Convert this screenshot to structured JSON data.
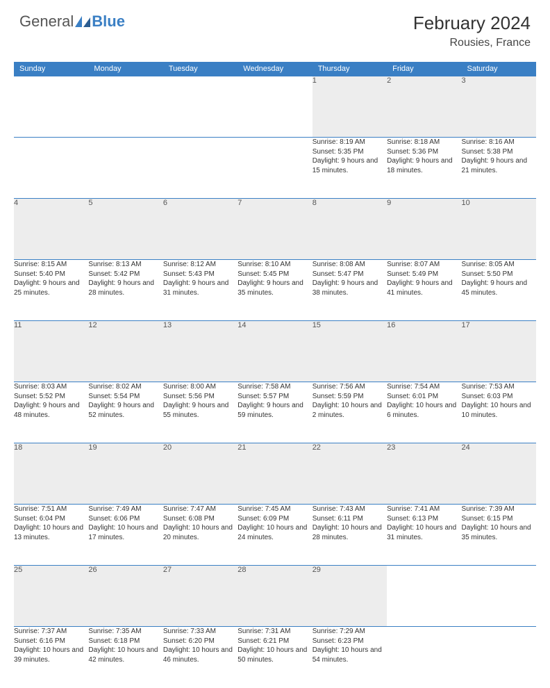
{
  "brand": {
    "text1": "General",
    "text2": "Blue"
  },
  "title": "February 2024",
  "location": "Rousies, France",
  "colors": {
    "header_bg": "#3a7fc4",
    "header_text": "#ffffff",
    "daynum_bg": "#ededed",
    "border": "#3a7fc4",
    "body_bg": "#ffffff",
    "text": "#333333"
  },
  "weekdays": [
    "Sunday",
    "Monday",
    "Tuesday",
    "Wednesday",
    "Thursday",
    "Friday",
    "Saturday"
  ],
  "weeks": [
    [
      null,
      null,
      null,
      null,
      {
        "n": "1",
        "sunrise": "8:19 AM",
        "sunset": "5:35 PM",
        "daylight": "9 hours and 15 minutes."
      },
      {
        "n": "2",
        "sunrise": "8:18 AM",
        "sunset": "5:36 PM",
        "daylight": "9 hours and 18 minutes."
      },
      {
        "n": "3",
        "sunrise": "8:16 AM",
        "sunset": "5:38 PM",
        "daylight": "9 hours and 21 minutes."
      }
    ],
    [
      {
        "n": "4",
        "sunrise": "8:15 AM",
        "sunset": "5:40 PM",
        "daylight": "9 hours and 25 minutes."
      },
      {
        "n": "5",
        "sunrise": "8:13 AM",
        "sunset": "5:42 PM",
        "daylight": "9 hours and 28 minutes."
      },
      {
        "n": "6",
        "sunrise": "8:12 AM",
        "sunset": "5:43 PM",
        "daylight": "9 hours and 31 minutes."
      },
      {
        "n": "7",
        "sunrise": "8:10 AM",
        "sunset": "5:45 PM",
        "daylight": "9 hours and 35 minutes."
      },
      {
        "n": "8",
        "sunrise": "8:08 AM",
        "sunset": "5:47 PM",
        "daylight": "9 hours and 38 minutes."
      },
      {
        "n": "9",
        "sunrise": "8:07 AM",
        "sunset": "5:49 PM",
        "daylight": "9 hours and 41 minutes."
      },
      {
        "n": "10",
        "sunrise": "8:05 AM",
        "sunset": "5:50 PM",
        "daylight": "9 hours and 45 minutes."
      }
    ],
    [
      {
        "n": "11",
        "sunrise": "8:03 AM",
        "sunset": "5:52 PM",
        "daylight": "9 hours and 48 minutes."
      },
      {
        "n": "12",
        "sunrise": "8:02 AM",
        "sunset": "5:54 PM",
        "daylight": "9 hours and 52 minutes."
      },
      {
        "n": "13",
        "sunrise": "8:00 AM",
        "sunset": "5:56 PM",
        "daylight": "9 hours and 55 minutes."
      },
      {
        "n": "14",
        "sunrise": "7:58 AM",
        "sunset": "5:57 PM",
        "daylight": "9 hours and 59 minutes."
      },
      {
        "n": "15",
        "sunrise": "7:56 AM",
        "sunset": "5:59 PM",
        "daylight": "10 hours and 2 minutes."
      },
      {
        "n": "16",
        "sunrise": "7:54 AM",
        "sunset": "6:01 PM",
        "daylight": "10 hours and 6 minutes."
      },
      {
        "n": "17",
        "sunrise": "7:53 AM",
        "sunset": "6:03 PM",
        "daylight": "10 hours and 10 minutes."
      }
    ],
    [
      {
        "n": "18",
        "sunrise": "7:51 AM",
        "sunset": "6:04 PM",
        "daylight": "10 hours and 13 minutes."
      },
      {
        "n": "19",
        "sunrise": "7:49 AM",
        "sunset": "6:06 PM",
        "daylight": "10 hours and 17 minutes."
      },
      {
        "n": "20",
        "sunrise": "7:47 AM",
        "sunset": "6:08 PM",
        "daylight": "10 hours and 20 minutes."
      },
      {
        "n": "21",
        "sunrise": "7:45 AM",
        "sunset": "6:09 PM",
        "daylight": "10 hours and 24 minutes."
      },
      {
        "n": "22",
        "sunrise": "7:43 AM",
        "sunset": "6:11 PM",
        "daylight": "10 hours and 28 minutes."
      },
      {
        "n": "23",
        "sunrise": "7:41 AM",
        "sunset": "6:13 PM",
        "daylight": "10 hours and 31 minutes."
      },
      {
        "n": "24",
        "sunrise": "7:39 AM",
        "sunset": "6:15 PM",
        "daylight": "10 hours and 35 minutes."
      }
    ],
    [
      {
        "n": "25",
        "sunrise": "7:37 AM",
        "sunset": "6:16 PM",
        "daylight": "10 hours and 39 minutes."
      },
      {
        "n": "26",
        "sunrise": "7:35 AM",
        "sunset": "6:18 PM",
        "daylight": "10 hours and 42 minutes."
      },
      {
        "n": "27",
        "sunrise": "7:33 AM",
        "sunset": "6:20 PM",
        "daylight": "10 hours and 46 minutes."
      },
      {
        "n": "28",
        "sunrise": "7:31 AM",
        "sunset": "6:21 PM",
        "daylight": "10 hours and 50 minutes."
      },
      {
        "n": "29",
        "sunrise": "7:29 AM",
        "sunset": "6:23 PM",
        "daylight": "10 hours and 54 minutes."
      },
      null,
      null
    ]
  ],
  "labels": {
    "sunrise": "Sunrise: ",
    "sunset": "Sunset: ",
    "daylight": "Daylight: "
  }
}
